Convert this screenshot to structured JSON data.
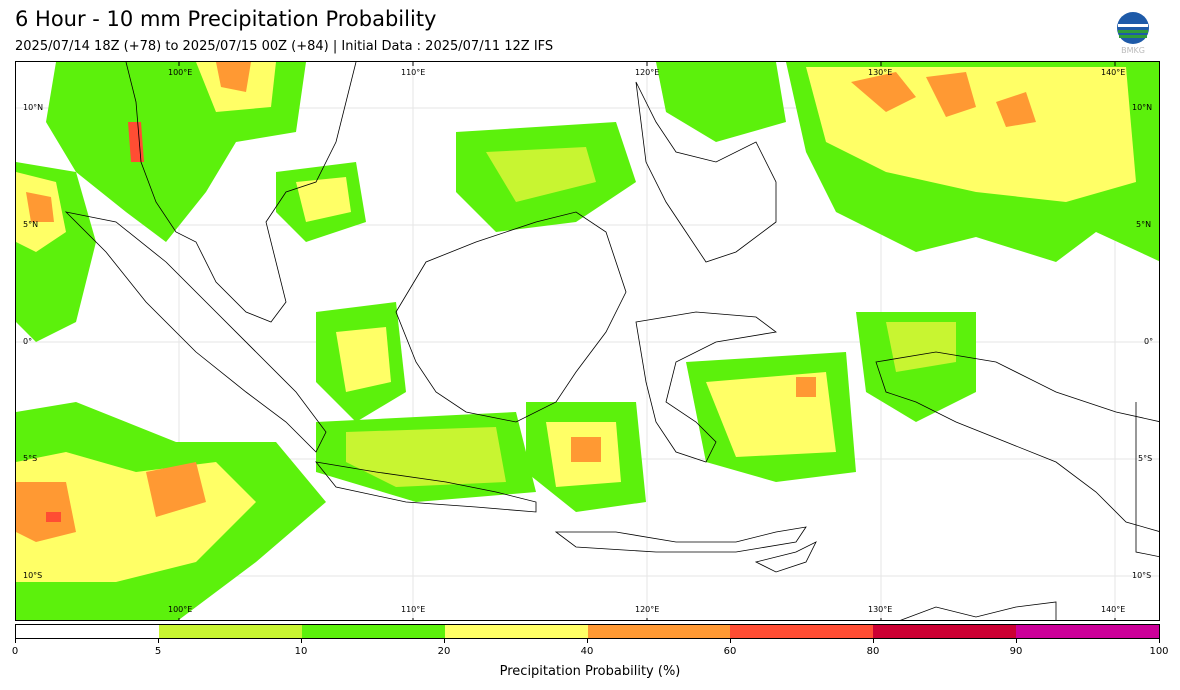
{
  "title": "6 Hour - 10 mm Precipitation Probability",
  "subtitle": "2025/07/14 18Z (+78) to 2025/07/15 00Z (+84) | Initial Data : 2025/07/11 12Z IFS",
  "logo": {
    "icon": "bmkg-logo-icon",
    "text": "BMKG"
  },
  "map": {
    "lon_labels": [
      "100°E",
      "110°E",
      "120°E",
      "130°E",
      "140°E"
    ],
    "lat_labels": [
      "10°N",
      "5°N",
      "0°",
      "5°S",
      "10°S"
    ],
    "grid": true
  },
  "colorbar": {
    "label": "Precipitation Probability (%)",
    "ticks": [
      "0",
      "5",
      "10",
      "20",
      "40",
      "60",
      "80",
      "90",
      "100"
    ],
    "colors": [
      "#ffffff",
      "#c8f531",
      "#5cf10c",
      "#ffff66",
      "#ff9933",
      "#ff4d33",
      "#cc0033",
      "#cc0099"
    ]
  }
}
